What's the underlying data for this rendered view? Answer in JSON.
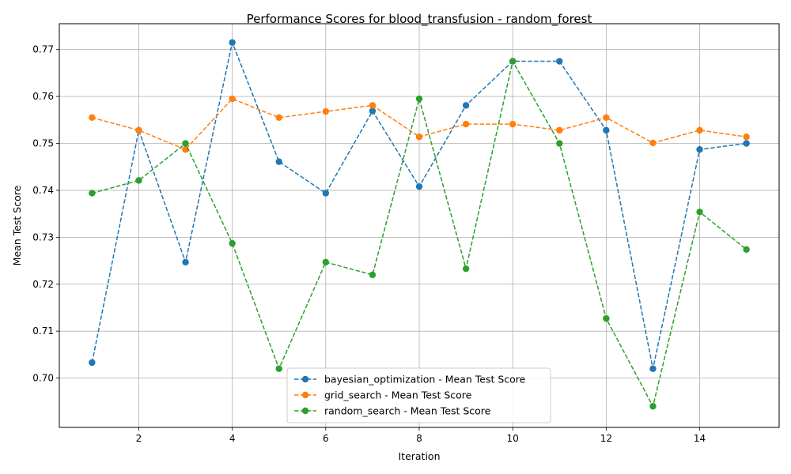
{
  "chart_data": {
    "type": "line",
    "title": "Performance Scores for blood_transfusion - random_forest",
    "xlabel": "Iteration",
    "ylabel": "Mean Test Score",
    "xlim": [
      0.3,
      15.7
    ],
    "ylim": [
      0.6895,
      0.7755
    ],
    "xticks": [
      2,
      4,
      6,
      8,
      10,
      12,
      14
    ],
    "yticks": [
      0.7,
      0.71,
      0.72,
      0.73,
      0.74,
      0.75,
      0.76,
      0.77
    ],
    "ytick_labels": [
      "0.70",
      "0.71",
      "0.72",
      "0.73",
      "0.74",
      "0.75",
      "0.76",
      "0.77"
    ],
    "grid": true,
    "legend_position": "bottom-center",
    "x": [
      1,
      2,
      3,
      4,
      5,
      6,
      7,
      8,
      9,
      10,
      11,
      12,
      13,
      14,
      15
    ],
    "series": [
      {
        "name": "bayesian_optimization - Mean Test Score",
        "color": "#1f77b4",
        "values": [
          0.7033,
          0.7528,
          0.7247,
          0.7715,
          0.7461,
          0.7394,
          0.7569,
          0.7408,
          0.7581,
          0.7675,
          0.7675,
          0.7528,
          0.702,
          0.7487,
          0.75
        ]
      },
      {
        "name": "grid_search - Mean Test Score",
        "color": "#ff7f0e",
        "values": [
          0.7555,
          0.7528,
          0.7487,
          0.7595,
          0.7555,
          0.7568,
          0.7581,
          0.7514,
          0.7541,
          0.7541,
          0.7528,
          0.7555,
          0.7501,
          0.7528,
          0.7514
        ]
      },
      {
        "name": "random_search - Mean Test Score",
        "color": "#2ca02c",
        "values": [
          0.7394,
          0.7421,
          0.75,
          0.7287,
          0.702,
          0.7247,
          0.722,
          0.7595,
          0.7233,
          0.7675,
          0.75,
          0.7127,
          0.694,
          0.7354,
          0.7274
        ]
      }
    ]
  }
}
